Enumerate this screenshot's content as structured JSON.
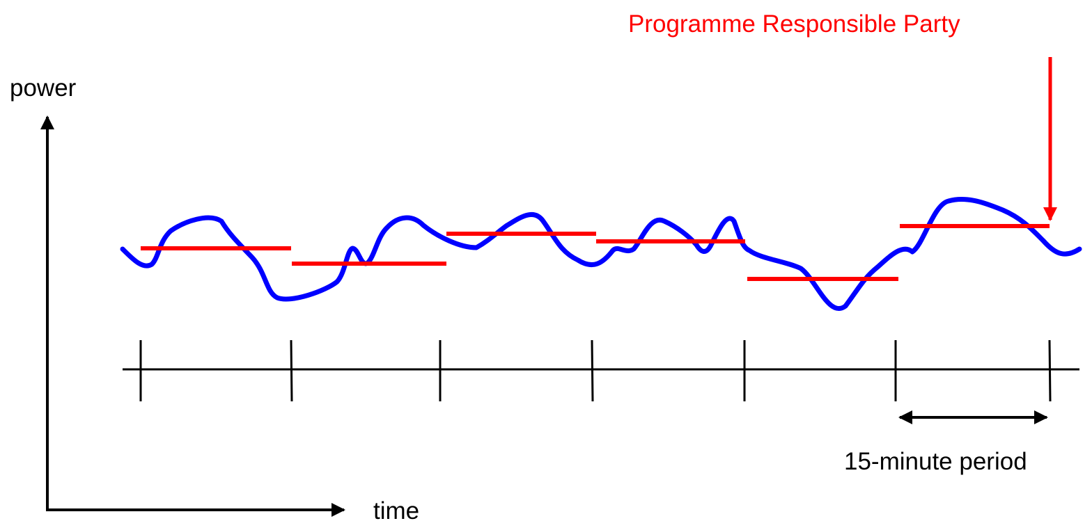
{
  "labels": {
    "y_axis": "power",
    "x_axis": "time",
    "period": "15-minute period",
    "programme": "Programme Responsible Party"
  },
  "colors": {
    "actual_curve": "#0000ff",
    "programme": "#ff0000",
    "axes": "#000000"
  }
}
